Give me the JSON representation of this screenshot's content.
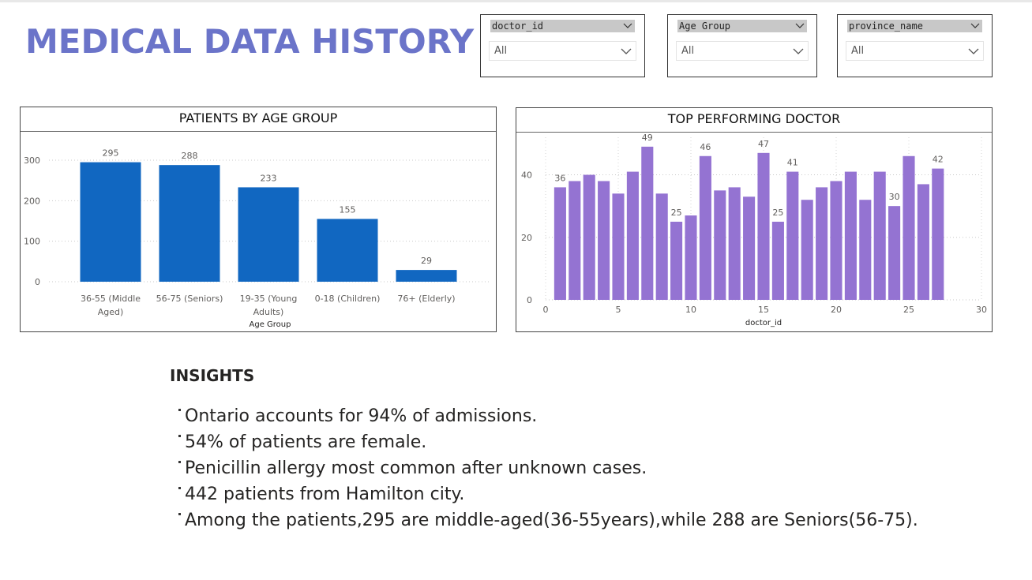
{
  "page": {
    "title": "MEDICAL DATA HISTORY"
  },
  "filters": [
    {
      "field": "doctor_id",
      "value": "All"
    },
    {
      "field": "Age Group",
      "value": "All"
    },
    {
      "field": "province_name",
      "value": "All"
    }
  ],
  "colors": {
    "title": "#6b74c9",
    "age_bars": "#1167c1",
    "doctor_bars": "#9473d2"
  },
  "insights": {
    "title": "INSIGHTS",
    "items": [
      "Ontario accounts for 94% of admissions.",
      "54% of patients are female.",
      "Penicillin allergy most common after unknown cases.",
      "442 patients from Hamilton city.",
      "Among the patients,295 are middle-aged(36-55years),while 288 are Seniors(56-75)."
    ]
  },
  "chart_data": [
    {
      "type": "bar",
      "title": "PATIENTS BY AGE GROUP",
      "xlabel": "Age Group",
      "ylabel": "",
      "categories": [
        "36-55 (Middle Aged)",
        "56-75 (Seniors)",
        "19-35 (Young Adults)",
        "0-18 (Children)",
        "76+ (Elderly)"
      ],
      "category_lines": [
        [
          "36-55 (Middle",
          "Aged)"
        ],
        [
          "56-75 (Seniors)"
        ],
        [
          "19-35 (Young",
          "Adults)"
        ],
        [
          "0-18 (Children)"
        ],
        [
          "76+ (Elderly)"
        ]
      ],
      "values": [
        295,
        288,
        233,
        155,
        29
      ],
      "data_labels": [
        "295",
        "288",
        "233",
        "155",
        "29"
      ],
      "ylim": [
        0,
        300
      ],
      "yticks": [
        0,
        100,
        200,
        300
      ],
      "grid": true
    },
    {
      "type": "bar",
      "title": "TOP PERFORMING DOCTOR",
      "xlabel": "doctor_id",
      "ylabel": "",
      "x": [
        1,
        2,
        3,
        4,
        5,
        6,
        7,
        8,
        9,
        10,
        11,
        12,
        13,
        14,
        15,
        16,
        17,
        18,
        19,
        20,
        21,
        22,
        23,
        24,
        25,
        26,
        27
      ],
      "values": [
        36,
        38,
        40,
        38,
        34,
        41,
        49,
        34,
        25,
        27,
        46,
        35,
        36,
        33,
        47,
        25,
        41,
        32,
        36,
        38,
        41,
        32,
        41,
        30,
        46,
        37,
        42
      ],
      "data_labels": [
        {
          "x": 1,
          "label": "36"
        },
        {
          "x": 7,
          "label": "49"
        },
        {
          "x": 9,
          "label": "25"
        },
        {
          "x": 11,
          "label": "46"
        },
        {
          "x": 15,
          "label": "47"
        },
        {
          "x": 16,
          "label": "25"
        },
        {
          "x": 17,
          "label": "41"
        },
        {
          "x": 24,
          "label": "30"
        },
        {
          "x": 27,
          "label": "42"
        }
      ],
      "xlim": [
        0,
        30
      ],
      "xticks": [
        0,
        5,
        10,
        15,
        20,
        25,
        30
      ],
      "ylim": [
        0,
        52
      ],
      "yticks": [
        0,
        20,
        40
      ],
      "grid": true
    }
  ]
}
